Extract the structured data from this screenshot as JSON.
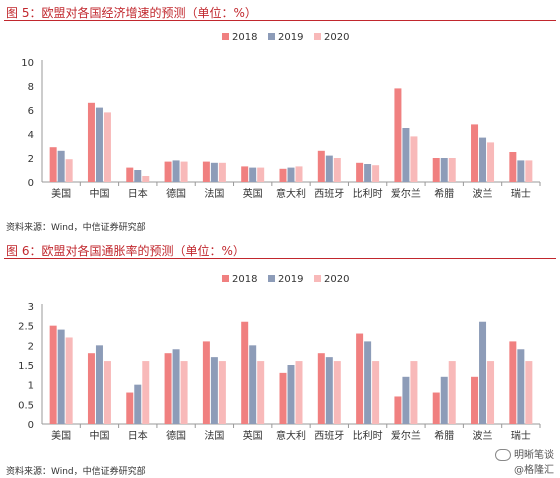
{
  "figures": [
    {
      "title": "图 5：欧盟对各国经济增速的预测（单位：%）",
      "source": "资料来源：Wind，中信证券研究部"
    },
    {
      "title": "图 6：欧盟对各国通胀率的预测（单位：%）",
      "source": "资料来源：Wind，中信证券研究部"
    }
  ],
  "watermark": {
    "line1": "明晰笔谈",
    "line2": "@格隆汇"
  },
  "colors": {
    "2018": "#f08080",
    "2019": "#8d9cb8",
    "2020": "#f8b9b9",
    "accent": "#c1272d"
  },
  "chart_data": [
    {
      "type": "bar",
      "title": "",
      "categories": [
        "美国",
        "中国",
        "日本",
        "德国",
        "法国",
        "英国",
        "意大利",
        "西班牙",
        "比利时",
        "爱尔兰",
        "希腊",
        "波兰",
        "瑞士"
      ],
      "series": [
        {
          "name": "2018",
          "values": [
            2.9,
            6.6,
            1.2,
            1.7,
            1.7,
            1.3,
            1.1,
            2.6,
            1.6,
            7.8,
            2.0,
            4.8,
            2.5
          ]
        },
        {
          "name": "2019",
          "values": [
            2.6,
            6.2,
            1.0,
            1.8,
            1.6,
            1.2,
            1.2,
            2.2,
            1.5,
            4.5,
            2.0,
            3.7,
            1.8
          ]
        },
        {
          "name": "2020",
          "values": [
            1.9,
            5.8,
            0.5,
            1.7,
            1.6,
            1.2,
            1.3,
            2.0,
            1.4,
            3.8,
            2.0,
            3.3,
            1.8
          ]
        }
      ],
      "yticks": [
        "0",
        "2",
        "4",
        "6",
        "8",
        "10"
      ],
      "ylim": [
        0,
        10
      ],
      "legend": "top-center",
      "grid": false
    },
    {
      "type": "bar",
      "title": "",
      "categories": [
        "美国",
        "中国",
        "日本",
        "德国",
        "法国",
        "英国",
        "意大利",
        "西班牙",
        "比利时",
        "爱尔兰",
        "希腊",
        "波兰",
        "瑞士"
      ],
      "series": [
        {
          "name": "2018",
          "values": [
            2.5,
            1.8,
            0.8,
            1.8,
            2.1,
            2.6,
            1.3,
            1.8,
            2.3,
            0.7,
            0.8,
            1.2,
            2.1
          ]
        },
        {
          "name": "2019",
          "values": [
            2.4,
            2.0,
            1.0,
            1.9,
            1.7,
            2.0,
            1.5,
            1.7,
            2.1,
            1.2,
            1.2,
            2.6,
            1.9
          ]
        },
        {
          "name": "2020",
          "values": [
            2.2,
            1.6,
            1.6,
            1.6,
            1.6,
            1.6,
            1.6,
            1.6,
            1.6,
            1.6,
            1.6,
            1.6,
            1.6
          ]
        }
      ],
      "yticks": [
        "0",
        "0.5",
        "1",
        "1.5",
        "2",
        "2.5",
        "3"
      ],
      "ylim": [
        0,
        3
      ],
      "legend": "top-center",
      "grid": false
    }
  ]
}
